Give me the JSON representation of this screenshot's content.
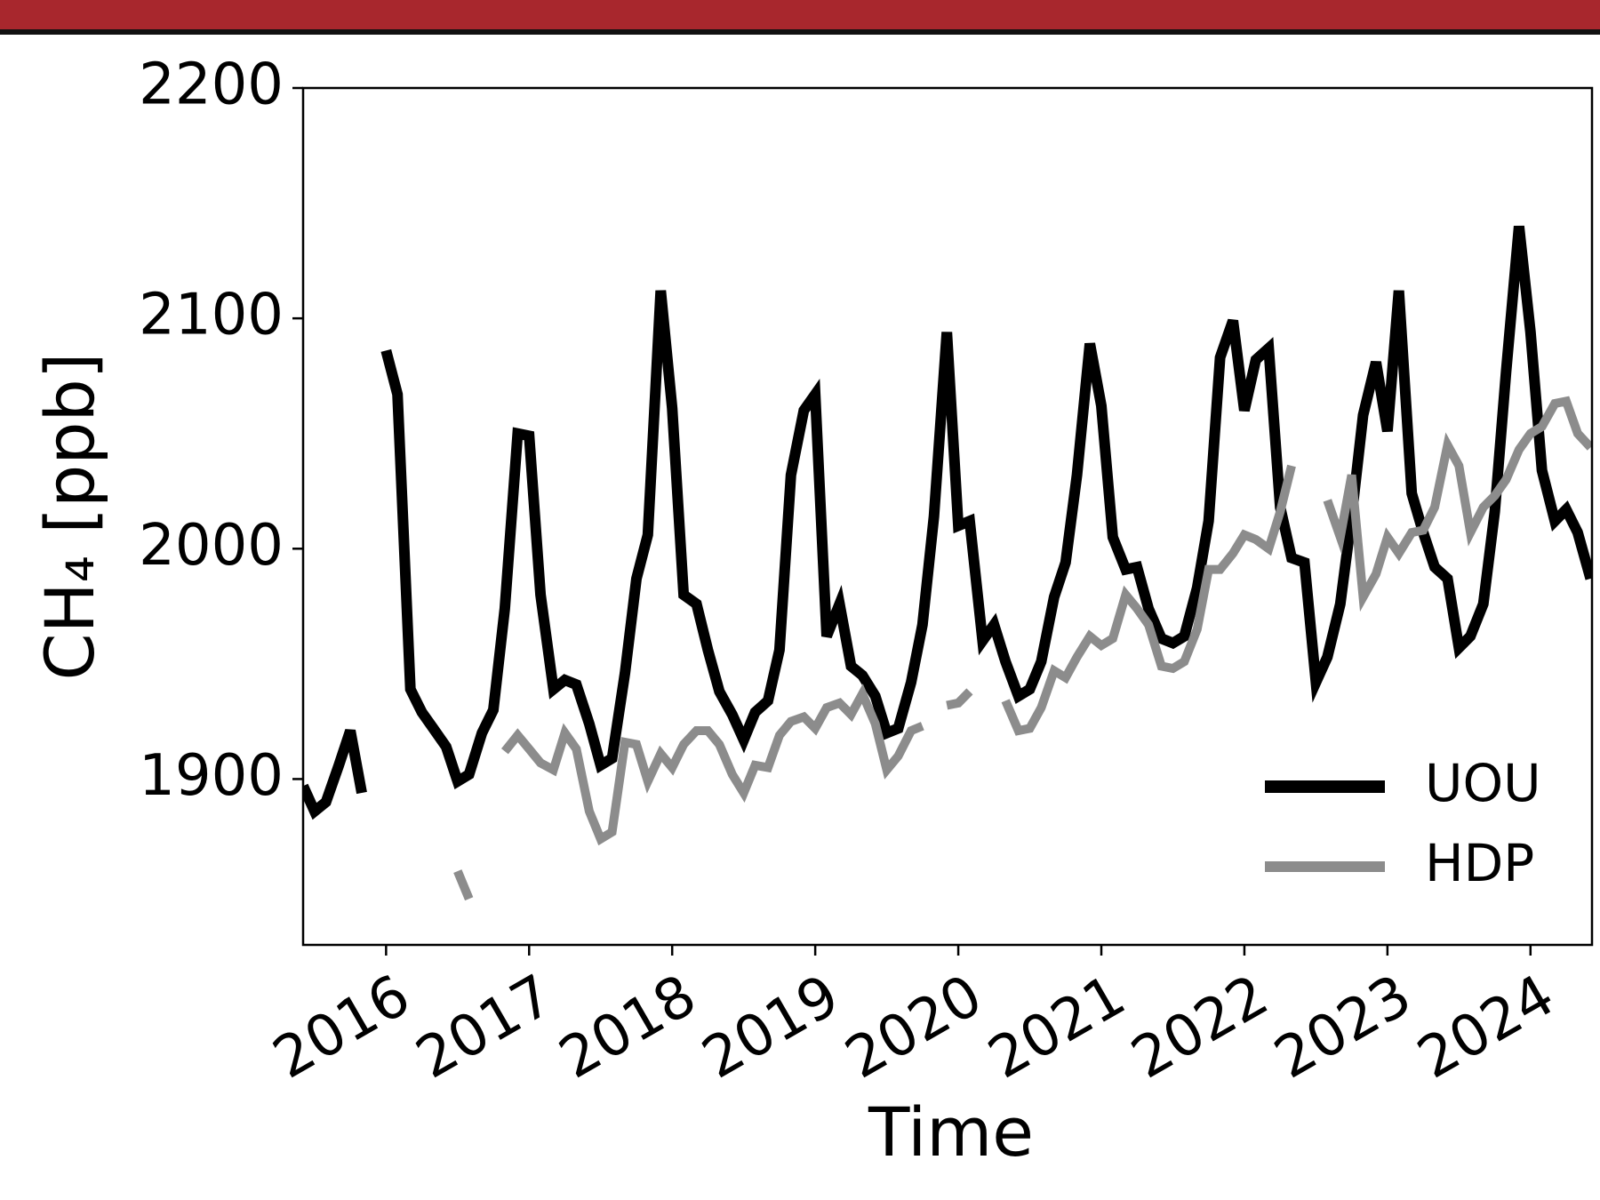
{
  "chart_data": {
    "type": "line",
    "ylabel": "CH₄ [ppb]",
    "xlabel": "Time",
    "x": [
      2015.42,
      2015.5,
      2015.58,
      2015.67,
      2015.75,
      2015.83,
      2015.92,
      2016,
      2016.08,
      2016.17,
      2016.25,
      2016.33,
      2016.42,
      2016.5,
      2016.58,
      2016.67,
      2016.75,
      2016.83,
      2016.92,
      2017,
      2017.08,
      2017.17,
      2017.25,
      2017.33,
      2017.42,
      2017.5,
      2017.58,
      2017.67,
      2017.75,
      2017.83,
      2017.92,
      2018,
      2018.08,
      2018.17,
      2018.25,
      2018.33,
      2018.42,
      2018.5,
      2018.58,
      2018.67,
      2018.75,
      2018.83,
      2018.92,
      2019,
      2019.08,
      2019.17,
      2019.25,
      2019.33,
      2019.42,
      2019.5,
      2019.58,
      2019.67,
      2019.75,
      2019.83,
      2019.92,
      2020,
      2020.08,
      2020.17,
      2020.25,
      2020.33,
      2020.42,
      2020.5,
      2020.58,
      2020.67,
      2020.75,
      2020.83,
      2020.92,
      2021,
      2021.08,
      2021.17,
      2021.25,
      2021.33,
      2021.42,
      2021.5,
      2021.58,
      2021.67,
      2021.75,
      2021.83,
      2021.92,
      2022,
      2022.08,
      2022.17,
      2022.25,
      2022.33,
      2022.42,
      2022.5,
      2022.58,
      2022.67,
      2022.75,
      2022.83,
      2022.92,
      2023,
      2023.08,
      2023.17,
      2023.25,
      2023.33,
      2023.42,
      2023.5,
      2023.58,
      2023.67,
      2023.75,
      2023.83,
      2023.92,
      2024,
      2024.08,
      2024.17,
      2024.25,
      2024.33,
      2024.42
    ],
    "series": [
      {
        "name": "UOU",
        "color": "#000000",
        "values": [
          1897,
          1886,
          1890,
          1906,
          1921,
          1894,
          null,
          2086,
          2067,
          1939,
          1929,
          1922,
          1914,
          1899,
          1902,
          1920,
          1930,
          1974,
          2050,
          2049,
          1980,
          1939,
          1943,
          1941,
          1924,
          1906,
          1909,
          1946,
          1987,
          2006,
          2112,
          2061,
          1980,
          1976,
          1956,
          1938,
          1928,
          1917,
          1929,
          1934,
          1956,
          2032,
          2060,
          2067,
          1962,
          1976,
          1949,
          1945,
          1936,
          1920,
          1922,
          1942,
          1967,
          2014,
          2094,
          2010,
          2012,
          1960,
          1967,
          1951,
          1936,
          1939,
          1951,
          1979,
          1994,
          2032,
          2089,
          2062,
          2005,
          1991,
          1992,
          1974,
          1961,
          1959,
          1962,
          1983,
          2012,
          2083,
          2099,
          2060,
          2082,
          2087,
          2018,
          1996,
          1994,
          1942,
          1953,
          1976,
          2014,
          2058,
          2081,
          2051,
          2112,
          2024,
          2007,
          1992,
          1987,
          1957,
          1962,
          1976,
          2016,
          2077,
          2140,
          2094,
          2034,
          2012,
          2017,
          2007,
          1987
        ]
      },
      {
        "name": "HDP",
        "color": "#8c8c8c",
        "values": [
          null,
          null,
          null,
          null,
          null,
          null,
          null,
          null,
          null,
          null,
          null,
          null,
          null,
          1860,
          1848,
          null,
          null,
          1912,
          1919,
          1913,
          1907,
          1904,
          1920,
          1913,
          1886,
          1874,
          1877,
          1916,
          1915,
          1899,
          1911,
          1905,
          1915,
          1921,
          1921,
          1915,
          1902,
          1894,
          1906,
          1905,
          1919,
          1925,
          1927,
          1922,
          1931,
          1933,
          1928,
          1937,
          1924,
          1904,
          1910,
          1921,
          1923,
          null,
          1932,
          1933,
          1938,
          null,
          null,
          1934,
          1921,
          1922,
          1931,
          1947,
          1944,
          1953,
          1962,
          1958,
          1961,
          1980,
          1974,
          1967,
          1949,
          1948,
          1951,
          1965,
          1991,
          1991,
          1998,
          2006,
          2004,
          2000,
          2016,
          2036,
          null,
          null,
          2021,
          2005,
          2032,
          1979,
          1989,
          2005,
          1998,
          2007,
          2008,
          2018,
          2045,
          2036,
          2007,
          2018,
          2023,
          2030,
          2043,
          2050,
          2053,
          2063,
          2064,
          2050,
          2044
        ]
      }
    ],
    "xlim": [
      2015.42,
      2024.43
    ],
    "xticks": [
      2016,
      2017,
      2018,
      2019,
      2020,
      2021,
      2022,
      2023,
      2024
    ],
    "ylim": [
      1828,
      2200
    ],
    "yticks": [
      1900,
      2000,
      2100,
      2200
    ],
    "legend": "lower right"
  }
}
